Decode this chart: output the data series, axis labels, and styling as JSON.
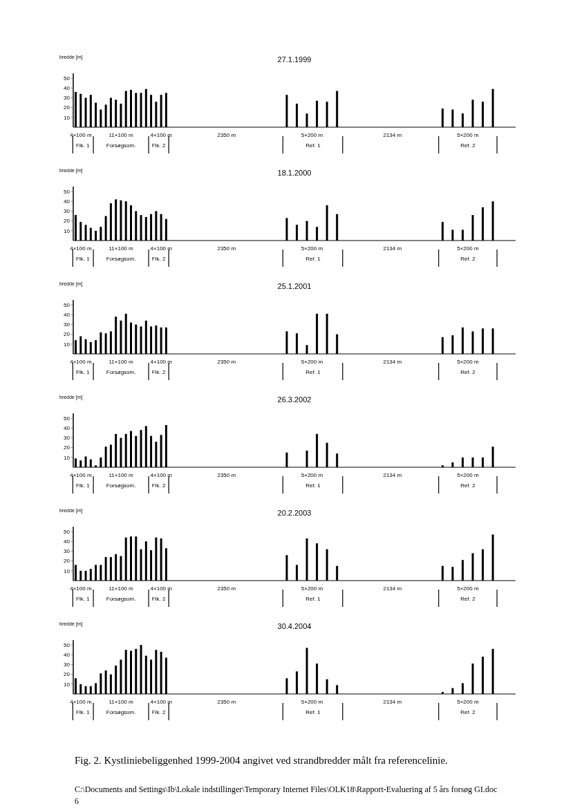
{
  "chart_data": [
    {
      "type": "bar",
      "title": "27.1.1999",
      "ylabel": "bredde [m]",
      "color": "#000000",
      "ylim": [
        0,
        55
      ],
      "yticks": [
        10,
        20,
        30,
        40,
        50
      ],
      "categories": [
        null,
        "4×100 m",
        null,
        null,
        null,
        null,
        null,
        null,
        null,
        "11×100 m",
        null,
        null,
        null,
        null,
        null,
        null,
        null,
        "4×100 m",
        null,
        null,
        null,
        null,
        null,
        null,
        null,
        null,
        null,
        null,
        null,
        null,
        "2350 m",
        null,
        null,
        null,
        null,
        null,
        null,
        null,
        null,
        null,
        null,
        null,
        null,
        null,
        null,
        null,
        null,
        "5×200 m",
        null,
        null,
        null,
        null,
        null,
        null,
        null,
        null,
        null,
        null,
        null,
        null,
        null,
        null,
        null,
        "2134 m",
        null,
        null,
        null,
        null,
        null,
        null,
        null,
        null,
        null,
        null,
        null,
        null,
        null,
        null,
        "5×200 m",
        null,
        null,
        null,
        null,
        null,
        null,
        null,
        null,
        null
      ],
      "values": [
        36,
        34,
        30,
        33,
        25,
        18,
        23,
        30,
        28,
        24,
        37,
        38,
        35,
        35,
        39,
        33,
        26,
        33,
        35,
        null,
        null,
        null,
        null,
        null,
        null,
        null,
        null,
        null,
        null,
        null,
        null,
        null,
        null,
        null,
        null,
        null,
        null,
        null,
        null,
        null,
        null,
        null,
        33,
        null,
        24,
        null,
        14,
        null,
        27,
        null,
        26,
        null,
        37,
        null,
        null,
        null,
        null,
        null,
        null,
        null,
        null,
        null,
        null,
        null,
        null,
        null,
        null,
        null,
        null,
        null,
        null,
        null,
        null,
        19,
        null,
        18,
        null,
        14,
        null,
        28,
        null,
        26,
        null,
        39,
        null,
        null,
        null,
        null
      ],
      "annotations": [
        "Flk. 1",
        "Forsøgsom.",
        "Flk. 2",
        "Ref. 1",
        "Ref. 2"
      ]
    },
    {
      "type": "bar",
      "title": "18.1.2000",
      "ylabel": "bredde [m]",
      "color": "#000000",
      "ylim": [
        0,
        55
      ],
      "yticks": [
        10,
        20,
        30,
        40,
        50
      ],
      "categories": [
        null,
        "4×100 m",
        null,
        null,
        null,
        null,
        null,
        null,
        null,
        "11×100 m",
        null,
        null,
        null,
        null,
        null,
        null,
        null,
        "4×100 m",
        null,
        null,
        null,
        null,
        null,
        null,
        null,
        null,
        null,
        null,
        null,
        null,
        "2350 m",
        null,
        null,
        null,
        null,
        null,
        null,
        null,
        null,
        null,
        null,
        null,
        null,
        null,
        null,
        null,
        null,
        "5×200 m",
        null,
        null,
        null,
        null,
        null,
        null,
        null,
        null,
        null,
        null,
        null,
        null,
        null,
        null,
        null,
        "2134 m",
        null,
        null,
        null,
        null,
        null,
        null,
        null,
        null,
        null,
        null,
        null,
        null,
        null,
        null,
        "5×200 m",
        null,
        null,
        null,
        null,
        null,
        null,
        null,
        null,
        null
      ],
      "values": [
        26,
        19,
        16,
        13,
        10,
        14,
        25,
        38,
        42,
        41,
        40,
        36,
        30,
        26,
        24,
        27,
        30,
        27,
        22,
        null,
        null,
        null,
        null,
        null,
        null,
        null,
        null,
        null,
        null,
        null,
        null,
        null,
        null,
        null,
        null,
        null,
        null,
        null,
        null,
        null,
        null,
        null,
        23,
        null,
        16,
        null,
        20,
        null,
        14,
        null,
        36,
        null,
        27,
        null,
        null,
        null,
        null,
        null,
        null,
        null,
        null,
        null,
        null,
        null,
        null,
        null,
        null,
        null,
        null,
        null,
        null,
        null,
        null,
        19,
        null,
        11,
        null,
        11,
        null,
        26,
        null,
        34,
        null,
        40,
        null,
        null,
        null,
        null
      ],
      "annotations": [
        "Flk. 1",
        "Forsøgsom.",
        "Flk. 2",
        "Ref. 1",
        "Ref. 2"
      ]
    },
    {
      "type": "bar",
      "title": "25.1.2001",
      "ylabel": "bredde [m]",
      "color": "#000000",
      "ylim": [
        0,
        55
      ],
      "yticks": [
        10,
        20,
        30,
        40,
        50
      ],
      "categories": [
        null,
        "4×100 m",
        null,
        null,
        null,
        null,
        null,
        null,
        null,
        "11×100 m",
        null,
        null,
        null,
        null,
        null,
        null,
        null,
        "4×100 m",
        null,
        null,
        null,
        null,
        null,
        null,
        null,
        null,
        null,
        null,
        null,
        null,
        "2350 m",
        null,
        null,
        null,
        null,
        null,
        null,
        null,
        null,
        null,
        null,
        null,
        null,
        null,
        null,
        null,
        null,
        "5×200 m",
        null,
        null,
        null,
        null,
        null,
        null,
        null,
        null,
        null,
        null,
        null,
        null,
        null,
        null,
        null,
        "2134 m",
        null,
        null,
        null,
        null,
        null,
        null,
        null,
        null,
        null,
        null,
        null,
        null,
        null,
        null,
        "5×200 m",
        null,
        null,
        null,
        null,
        null,
        null,
        null,
        null,
        null
      ],
      "values": [
        14,
        18,
        15,
        12,
        14,
        22,
        21,
        23,
        38,
        34,
        41,
        32,
        30,
        28,
        34,
        28,
        29,
        27,
        27,
        null,
        null,
        null,
        null,
        null,
        null,
        null,
        null,
        null,
        null,
        null,
        null,
        null,
        null,
        null,
        null,
        null,
        null,
        null,
        null,
        null,
        null,
        null,
        23,
        null,
        21,
        null,
        9,
        null,
        41,
        null,
        41,
        null,
        20,
        null,
        null,
        null,
        null,
        null,
        null,
        null,
        null,
        null,
        null,
        null,
        null,
        null,
        null,
        null,
        null,
        null,
        null,
        null,
        null,
        17,
        null,
        19,
        null,
        27,
        null,
        23,
        null,
        26,
        null,
        26,
        null,
        null,
        null,
        null
      ],
      "annotations": [
        "Flk. 1",
        "Forsøgsom.",
        "Flk. 2",
        "Ref. 1",
        "Ref. 2"
      ]
    },
    {
      "type": "bar",
      "title": "26.3.2002",
      "ylabel": "bredde [m]",
      "color": "#000000",
      "ylim": [
        0,
        55
      ],
      "yticks": [
        10,
        20,
        30,
        40,
        50
      ],
      "categories": [
        null,
        "4×100 m",
        null,
        null,
        null,
        null,
        null,
        null,
        null,
        "11×100 m",
        null,
        null,
        null,
        null,
        null,
        null,
        null,
        "4×100 m",
        null,
        null,
        null,
        null,
        null,
        null,
        null,
        null,
        null,
        null,
        null,
        null,
        "2350 m",
        null,
        null,
        null,
        null,
        null,
        null,
        null,
        null,
        null,
        null,
        null,
        null,
        null,
        null,
        null,
        null,
        "5×200 m",
        null,
        null,
        null,
        null,
        null,
        null,
        null,
        null,
        null,
        null,
        null,
        null,
        null,
        null,
        null,
        "2134 m",
        null,
        null,
        null,
        null,
        null,
        null,
        null,
        null,
        null,
        null,
        null,
        null,
        null,
        null,
        "5×200 m",
        null,
        null,
        null,
        null,
        null,
        null,
        null,
        null,
        null
      ],
      "values": [
        9,
        7,
        11,
        8,
        2,
        10,
        21,
        23,
        34,
        30,
        34,
        37,
        32,
        38,
        42,
        32,
        26,
        33,
        43,
        null,
        null,
        null,
        null,
        null,
        null,
        null,
        null,
        null,
        null,
        null,
        null,
        null,
        null,
        null,
        null,
        null,
        null,
        null,
        null,
        null,
        null,
        null,
        15,
        null,
        null,
        null,
        17,
        null,
        34,
        null,
        25,
        null,
        14,
        null,
        null,
        null,
        null,
        null,
        null,
        null,
        null,
        null,
        null,
        null,
        null,
        null,
        null,
        null,
        null,
        null,
        null,
        null,
        null,
        2,
        null,
        5,
        null,
        10,
        null,
        10,
        null,
        10,
        null,
        21,
        null,
        null,
        null,
        null
      ],
      "annotations": [
        "Flk. 1",
        "Forsøgsom.",
        "Flk. 2",
        "Ref. 1",
        "Ref. 2"
      ]
    },
    {
      "type": "bar",
      "title": "20.2.2003",
      "ylabel": "bredde [m]",
      "color": "#000000",
      "ylim": [
        0,
        55
      ],
      "yticks": [
        10,
        20,
        30,
        40,
        50
      ],
      "categories": [
        null,
        "4×100 m",
        null,
        null,
        null,
        null,
        null,
        null,
        null,
        "11×100 m",
        null,
        null,
        null,
        null,
        null,
        null,
        null,
        "4×100 m",
        null,
        null,
        null,
        null,
        null,
        null,
        null,
        null,
        null,
        null,
        null,
        null,
        "2350 m",
        null,
        null,
        null,
        null,
        null,
        null,
        null,
        null,
        null,
        null,
        null,
        null,
        null,
        null,
        null,
        null,
        "5×200 m",
        null,
        null,
        null,
        null,
        null,
        null,
        null,
        null,
        null,
        null,
        null,
        null,
        null,
        null,
        null,
        "2134 m",
        null,
        null,
        null,
        null,
        null,
        null,
        null,
        null,
        null,
        null,
        null,
        null,
        null,
        null,
        "5×200 m",
        null,
        null,
        null,
        null,
        null,
        null,
        null,
        null,
        null
      ],
      "values": [
        16,
        10,
        10,
        12,
        16,
        16,
        24,
        24,
        27,
        25,
        44,
        45,
        45,
        32,
        40,
        31,
        44,
        43,
        33,
        null,
        null,
        null,
        null,
        null,
        null,
        null,
        null,
        null,
        null,
        null,
        null,
        null,
        null,
        null,
        null,
        null,
        null,
        null,
        null,
        null,
        null,
        null,
        26,
        null,
        16,
        null,
        43,
        null,
        38,
        null,
        32,
        null,
        15,
        null,
        null,
        null,
        null,
        null,
        null,
        null,
        null,
        null,
        null,
        null,
        null,
        null,
        null,
        null,
        null,
        null,
        null,
        null,
        null,
        15,
        null,
        14,
        null,
        21,
        null,
        28,
        null,
        32,
        null,
        47,
        null,
        null,
        null,
        null
      ],
      "annotations": [
        "Flk. 1",
        "Forsøgsom.",
        "Flk. 2",
        "Ref. 1",
        "Ref. 2"
      ]
    },
    {
      "type": "bar",
      "title": "30.4.2004",
      "ylabel": "bredde [m]",
      "color": "#000000",
      "ylim": [
        0,
        55
      ],
      "yticks": [
        10,
        20,
        30,
        40,
        50
      ],
      "categories": [
        null,
        "4×100 m",
        null,
        null,
        null,
        null,
        null,
        null,
        null,
        "11×100 m",
        null,
        null,
        null,
        null,
        null,
        null,
        null,
        "4×100 m",
        null,
        null,
        null,
        null,
        null,
        null,
        null,
        null,
        null,
        null,
        null,
        null,
        "2350 m",
        null,
        null,
        null,
        null,
        null,
        null,
        null,
        null,
        null,
        null,
        null,
        null,
        null,
        null,
        null,
        null,
        "5×200 m",
        null,
        null,
        null,
        null,
        null,
        null,
        null,
        null,
        null,
        null,
        null,
        null,
        null,
        null,
        null,
        "2134 m",
        null,
        null,
        null,
        null,
        null,
        null,
        null,
        null,
        null,
        null,
        null,
        null,
        null,
        null,
        "5×200 m",
        null,
        null,
        null,
        null,
        null,
        null,
        null,
        null,
        null
      ],
      "values": [
        16,
        10,
        8,
        8,
        11,
        21,
        24,
        20,
        29,
        35,
        45,
        44,
        46,
        50,
        39,
        35,
        45,
        43,
        37,
        null,
        null,
        null,
        null,
        null,
        null,
        null,
        null,
        null,
        null,
        null,
        null,
        null,
        null,
        null,
        null,
        null,
        null,
        null,
        null,
        null,
        null,
        null,
        16,
        null,
        23,
        null,
        47,
        null,
        31,
        null,
        15,
        null,
        9,
        null,
        null,
        null,
        null,
        null,
        null,
        null,
        null,
        null,
        null,
        null,
        null,
        null,
        null,
        null,
        null,
        null,
        null,
        null,
        null,
        2,
        null,
        6,
        null,
        11,
        null,
        31,
        null,
        38,
        null,
        46,
        null,
        null,
        null,
        null
      ],
      "annotations": [
        "Flk. 1",
        "Forsøgsom.",
        "Flk. 2",
        "Ref. 1",
        "Ref. 2",
        "Fig. 2. Kystliniebeliggenhed 1999-2004 angivet ved strandbredder målt fra referencelinie.",
        "C:\\Documents and Settings\\Ib\\Lokale indstillinger\\Temporary Internet Files\\OLK18\\Rapport-Evaluering af 5 års forsøg GI.doc",
        "6"
      ]
    }
  ]
}
